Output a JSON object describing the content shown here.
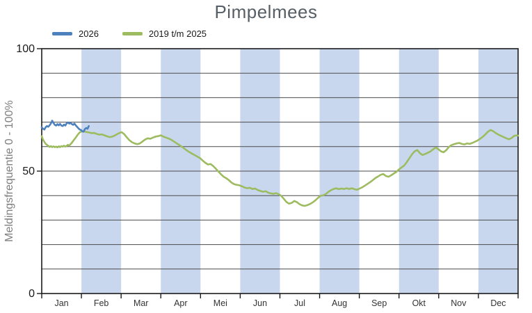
{
  "title": "Pimpelmees",
  "colors": {
    "band": "#c9d7ee",
    "grid": "#4a4a4a",
    "axis": "#1a1a1a",
    "title": "#565e66",
    "ylabel": "#7f7f7f",
    "tick_label": "#1a1a1a",
    "month_label": "#333333",
    "series_2026": "#4d81bd",
    "series_history": "#9dbb5f"
  },
  "chart_data": {
    "type": "line",
    "title": "Pimpelmees",
    "xlabel": "",
    "ylabel": "Meldingsfrequentie 0 - 100%",
    "ylim": [
      0,
      100
    ],
    "grid_step": 10,
    "yticks_labeled": [
      100,
      50,
      0
    ],
    "grid": true,
    "legend_position": "top-left",
    "x_unit": "day_of_year",
    "x_days": 365,
    "months": [
      "Jan",
      "Feb",
      "Mar",
      "Apr",
      "Mei",
      "Jun",
      "Jul",
      "Aug",
      "Sep",
      "Okt",
      "Nov",
      "Dec"
    ],
    "shaded_months": [
      "Feb",
      "Apr",
      "Jun",
      "Aug",
      "Okt",
      "Dec"
    ],
    "series": [
      {
        "name": "2026",
        "color": "#4d81bd",
        "points": [
          [
            1,
            67.9
          ],
          [
            2,
            67.3
          ],
          [
            3,
            67.0
          ],
          [
            4,
            67.9
          ],
          [
            5,
            68.4
          ],
          [
            6,
            68.1
          ],
          [
            7,
            68.7
          ],
          [
            8,
            69.5
          ],
          [
            9,
            70.6
          ],
          [
            10,
            69.7
          ],
          [
            11,
            68.9
          ],
          [
            12,
            68.6
          ],
          [
            13,
            69.2
          ],
          [
            14,
            68.7
          ],
          [
            15,
            69.3
          ],
          [
            16,
            68.6
          ],
          [
            17,
            68.4
          ],
          [
            18,
            69.0
          ],
          [
            19,
            68.6
          ],
          [
            20,
            69.5
          ],
          [
            21,
            69.9
          ],
          [
            22,
            69.4
          ],
          [
            23,
            69.7
          ],
          [
            24,
            69.2
          ],
          [
            25,
            68.9
          ],
          [
            26,
            69.4
          ],
          [
            27,
            68.7
          ],
          [
            28,
            68.1
          ],
          [
            29,
            67.5
          ],
          [
            30,
            67.0
          ],
          [
            31,
            66.8
          ],
          [
            32,
            66.3
          ],
          [
            33,
            66.1
          ],
          [
            34,
            67.2
          ],
          [
            35,
            67.6
          ],
          [
            36,
            67.3
          ],
          [
            37,
            68.4
          ]
        ]
      },
      {
        "name": "2019 t/m 2025",
        "color": "#9dbb5f",
        "points": [
          [
            1,
            64.3
          ],
          [
            2,
            62.8
          ],
          [
            3,
            61.9
          ],
          [
            4,
            61.2
          ],
          [
            5,
            60.7
          ],
          [
            6,
            60.3
          ],
          [
            7,
            59.9
          ],
          [
            8,
            60.2
          ],
          [
            9,
            59.8
          ],
          [
            10,
            60.1
          ],
          [
            11,
            59.8
          ],
          [
            12,
            60.0
          ],
          [
            13,
            59.7
          ],
          [
            14,
            60.1
          ],
          [
            15,
            59.8
          ],
          [
            16,
            60.2
          ],
          [
            17,
            60.0
          ],
          [
            18,
            60.4
          ],
          [
            19,
            60.0
          ],
          [
            20,
            60.3
          ],
          [
            21,
            60.7
          ],
          [
            22,
            60.4
          ],
          [
            23,
            61.0
          ],
          [
            24,
            61.6
          ],
          [
            25,
            62.3
          ],
          [
            26,
            63.0
          ],
          [
            27,
            63.7
          ],
          [
            28,
            64.5
          ],
          [
            29,
            65.2
          ],
          [
            30,
            65.8
          ],
          [
            31,
            66.1
          ],
          [
            33,
            66.3
          ],
          [
            35,
            66.0
          ],
          [
            37,
            65.8
          ],
          [
            39,
            65.5
          ],
          [
            41,
            65.6
          ],
          [
            43,
            65.2
          ],
          [
            45,
            64.9
          ],
          [
            47,
            65.0
          ],
          [
            49,
            64.6
          ],
          [
            51,
            64.2
          ],
          [
            53,
            63.9
          ],
          [
            55,
            64.1
          ],
          [
            57,
            64.6
          ],
          [
            59,
            65.2
          ],
          [
            61,
            65.7
          ],
          [
            62,
            65.9
          ],
          [
            64,
            65.1
          ],
          [
            66,
            63.8
          ],
          [
            68,
            62.6
          ],
          [
            70,
            61.8
          ],
          [
            72,
            61.3
          ],
          [
            74,
            61.0
          ],
          [
            76,
            61.3
          ],
          [
            78,
            62.1
          ],
          [
            80,
            62.9
          ],
          [
            82,
            63.4
          ],
          [
            84,
            63.2
          ],
          [
            86,
            63.7
          ],
          [
            88,
            64.1
          ],
          [
            90,
            64.3
          ],
          [
            92,
            64.6
          ],
          [
            94,
            64.1
          ],
          [
            96,
            63.7
          ],
          [
            98,
            63.3
          ],
          [
            100,
            62.8
          ],
          [
            102,
            62.1
          ],
          [
            104,
            61.4
          ],
          [
            106,
            60.7
          ],
          [
            108,
            60.0
          ],
          [
            110,
            59.2
          ],
          [
            112,
            58.4
          ],
          [
            114,
            57.7
          ],
          [
            116,
            57.1
          ],
          [
            118,
            56.5
          ],
          [
            120,
            55.9
          ],
          [
            122,
            55.3
          ],
          [
            124,
            54.3
          ],
          [
            126,
            53.4
          ],
          [
            128,
            52.7
          ],
          [
            130,
            52.9
          ],
          [
            132,
            52.1
          ],
          [
            134,
            51.0
          ],
          [
            136,
            49.8
          ],
          [
            138,
            48.7
          ],
          [
            140,
            47.7
          ],
          [
            142,
            47.1
          ],
          [
            144,
            46.3
          ],
          [
            146,
            45.3
          ],
          [
            148,
            44.7
          ],
          [
            150,
            44.4
          ],
          [
            152,
            44.2
          ],
          [
            154,
            43.8
          ],
          [
            156,
            43.3
          ],
          [
            158,
            43.0
          ],
          [
            160,
            43.2
          ],
          [
            162,
            42.7
          ],
          [
            164,
            42.9
          ],
          [
            166,
            42.3
          ],
          [
            168,
            41.9
          ],
          [
            170,
            41.6
          ],
          [
            172,
            41.8
          ],
          [
            174,
            41.2
          ],
          [
            176,
            40.9
          ],
          [
            178,
            40.7
          ],
          [
            180,
            41.0
          ],
          [
            182,
            40.6
          ],
          [
            184,
            39.9
          ],
          [
            186,
            38.7
          ],
          [
            188,
            37.4
          ],
          [
            190,
            36.7
          ],
          [
            192,
            37.0
          ],
          [
            194,
            37.8
          ],
          [
            196,
            37.3
          ],
          [
            198,
            36.5
          ],
          [
            200,
            36.0
          ],
          [
            202,
            35.8
          ],
          [
            204,
            36.1
          ],
          [
            206,
            36.6
          ],
          [
            208,
            37.2
          ],
          [
            210,
            38.0
          ],
          [
            212,
            39.0
          ],
          [
            214,
            39.9
          ],
          [
            216,
            40.1
          ],
          [
            218,
            40.6
          ],
          [
            220,
            41.5
          ],
          [
            222,
            42.2
          ],
          [
            224,
            42.7
          ],
          [
            226,
            43.0
          ],
          [
            228,
            42.6
          ],
          [
            230,
            42.9
          ],
          [
            232,
            42.7
          ],
          [
            234,
            43.0
          ],
          [
            236,
            42.7
          ],
          [
            238,
            43.0
          ],
          [
            240,
            42.6
          ],
          [
            242,
            42.4
          ],
          [
            244,
            42.9
          ],
          [
            246,
            43.4
          ],
          [
            248,
            44.1
          ],
          [
            250,
            44.8
          ],
          [
            252,
            45.5
          ],
          [
            254,
            46.3
          ],
          [
            256,
            47.2
          ],
          [
            258,
            47.8
          ],
          [
            260,
            48.5
          ],
          [
            262,
            48.8
          ],
          [
            264,
            48.0
          ],
          [
            266,
            47.7
          ],
          [
            268,
            48.3
          ],
          [
            270,
            49.0
          ],
          [
            272,
            49.7
          ],
          [
            274,
            50.7
          ],
          [
            276,
            51.5
          ],
          [
            278,
            52.3
          ],
          [
            280,
            53.7
          ],
          [
            282,
            55.3
          ],
          [
            284,
            56.9
          ],
          [
            286,
            58.1
          ],
          [
            288,
            58.6
          ],
          [
            290,
            57.3
          ],
          [
            292,
            56.6
          ],
          [
            294,
            57.0
          ],
          [
            296,
            57.5
          ],
          [
            298,
            58.0
          ],
          [
            300,
            58.9
          ],
          [
            302,
            59.6
          ],
          [
            304,
            59.0
          ],
          [
            306,
            58.1
          ],
          [
            308,
            57.7
          ],
          [
            310,
            58.5
          ],
          [
            312,
            59.8
          ],
          [
            314,
            60.6
          ],
          [
            316,
            61.0
          ],
          [
            318,
            61.3
          ],
          [
            320,
            61.5
          ],
          [
            322,
            61.1
          ],
          [
            324,
            60.9
          ],
          [
            326,
            61.3
          ],
          [
            328,
            61.1
          ],
          [
            330,
            61.5
          ],
          [
            332,
            62.0
          ],
          [
            334,
            62.5
          ],
          [
            336,
            63.2
          ],
          [
            338,
            64.0
          ],
          [
            340,
            65.0
          ],
          [
            342,
            66.1
          ],
          [
            344,
            66.8
          ],
          [
            346,
            66.3
          ],
          [
            348,
            65.5
          ],
          [
            350,
            64.9
          ],
          [
            352,
            64.4
          ],
          [
            354,
            63.9
          ],
          [
            356,
            63.4
          ],
          [
            358,
            63.0
          ],
          [
            360,
            63.5
          ],
          [
            362,
            64.4
          ],
          [
            364,
            64.6
          ],
          [
            365,
            64.5
          ]
        ]
      }
    ]
  }
}
